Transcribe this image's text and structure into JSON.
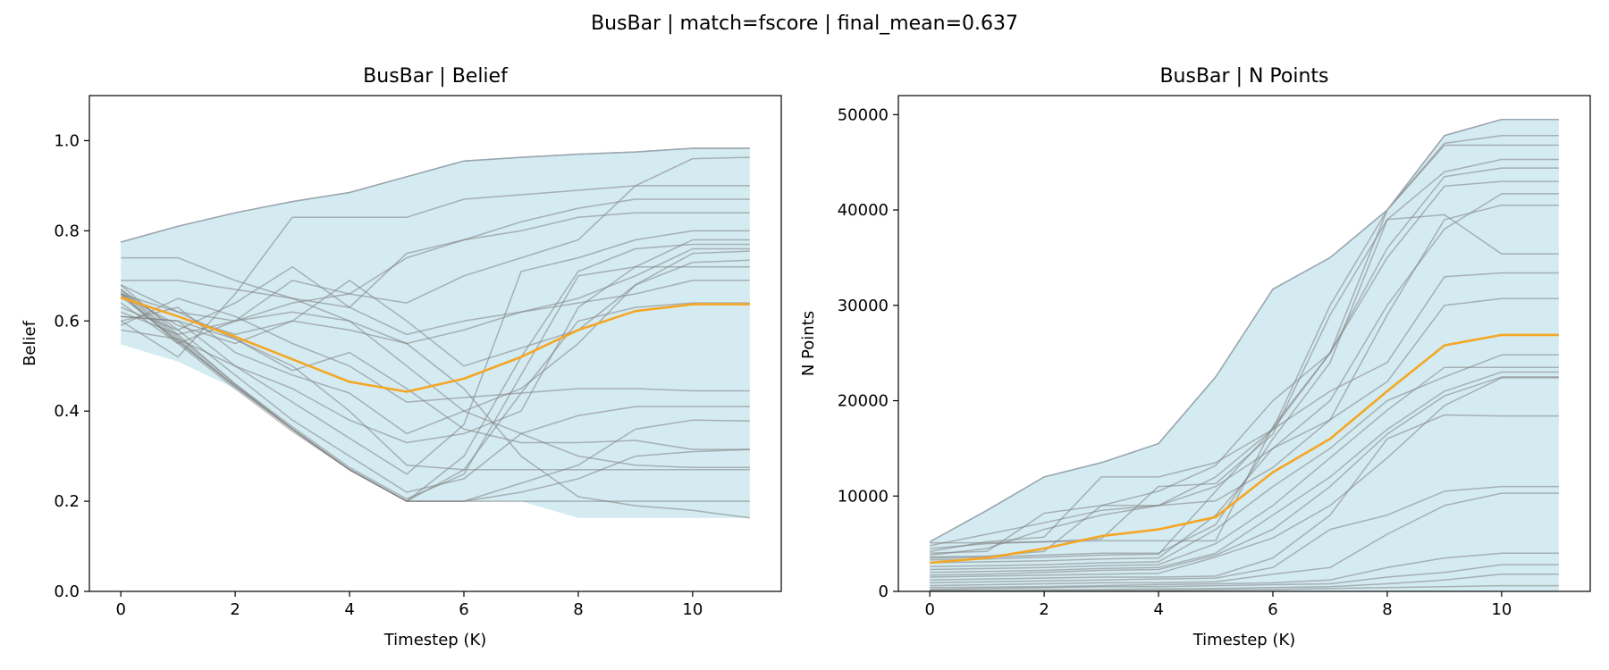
{
  "figure": {
    "suptitle": "BusBar | match=fscore | final_mean=0.637"
  },
  "colors": {
    "band": "#add8e6",
    "band_edge": "#9aa6b0",
    "run": "#808080",
    "mean": "#f5a623",
    "axis": "#000000"
  },
  "chart_data": [
    {
      "type": "line",
      "title": "BusBar | Belief",
      "xlabel": "Timestep (K)",
      "ylabel": "Belief",
      "xlim": [
        -0.55,
        11.55
      ],
      "ylim": [
        0.0,
        1.1
      ],
      "xticks": [
        0,
        2,
        4,
        6,
        8,
        10
      ],
      "yticks": [
        0.0,
        0.2,
        0.4,
        0.6,
        0.8,
        1.0
      ],
      "ytick_labels": [
        "0.0",
        "0.2",
        "0.4",
        "0.6",
        "0.8",
        "1.0"
      ],
      "x": [
        0,
        1,
        2,
        3,
        4,
        5,
        6,
        7,
        8,
        9,
        10,
        11
      ],
      "band_upper": [
        0.775,
        0.81,
        0.84,
        0.865,
        0.885,
        0.92,
        0.955,
        0.963,
        0.97,
        0.975,
        0.983,
        0.983
      ],
      "band_lower": [
        0.548,
        0.51,
        0.45,
        0.36,
        0.27,
        0.2,
        0.2,
        0.2,
        0.163,
        0.163,
        0.163,
        0.163
      ],
      "mean": [
        0.652,
        0.61,
        0.565,
        0.515,
        0.465,
        0.443,
        0.472,
        0.52,
        0.58,
        0.622,
        0.637,
        0.637
      ],
      "runs": [
        [
          0.775,
          0.81,
          0.84,
          0.865,
          0.885,
          0.92,
          0.955,
          0.963,
          0.97,
          0.975,
          0.983,
          0.983
        ],
        [
          0.74,
          0.74,
          0.69,
          0.65,
          0.6,
          0.55,
          0.45,
          0.3,
          0.21,
          0.19,
          0.18,
          0.163
        ],
        [
          0.69,
          0.69,
          0.67,
          0.65,
          0.63,
          0.75,
          0.78,
          0.8,
          0.83,
          0.84,
          0.84,
          0.84
        ],
        [
          0.68,
          0.62,
          0.6,
          0.62,
          0.6,
          0.5,
          0.4,
          0.35,
          0.3,
          0.28,
          0.275,
          0.275
        ],
        [
          0.66,
          0.59,
          0.55,
          0.6,
          0.58,
          0.55,
          0.58,
          0.62,
          0.64,
          0.66,
          0.69,
          0.69
        ],
        [
          0.65,
          0.61,
          0.57,
          0.6,
          0.69,
          0.6,
          0.5,
          0.54,
          0.58,
          0.68,
          0.75,
          0.755
        ],
        [
          0.64,
          0.55,
          0.6,
          0.69,
          0.66,
          0.64,
          0.7,
          0.74,
          0.78,
          0.9,
          0.96,
          0.963
        ],
        [
          0.63,
          0.58,
          0.64,
          0.72,
          0.63,
          0.57,
          0.6,
          0.62,
          0.65,
          0.7,
          0.76,
          0.76
        ],
        [
          0.62,
          0.57,
          0.6,
          0.64,
          0.66,
          0.74,
          0.78,
          0.82,
          0.85,
          0.87,
          0.87,
          0.87
        ],
        [
          0.61,
          0.6,
          0.56,
          0.49,
          0.53,
          0.45,
          0.36,
          0.33,
          0.33,
          0.335,
          0.315,
          0.315
        ],
        [
          0.6,
          0.52,
          0.66,
          0.83,
          0.83,
          0.83,
          0.87,
          0.88,
          0.89,
          0.9,
          0.9,
          0.9
        ],
        [
          0.59,
          0.65,
          0.61,
          0.55,
          0.5,
          0.42,
          0.43,
          0.44,
          0.45,
          0.45,
          0.445,
          0.445
        ],
        [
          0.66,
          0.62,
          0.56,
          0.5,
          0.4,
          0.28,
          0.27,
          0.27,
          0.27,
          0.27,
          0.27,
          0.27
        ],
        [
          0.58,
          0.56,
          0.5,
          0.45,
          0.38,
          0.33,
          0.35,
          0.4,
          0.63,
          0.72,
          0.78,
          0.78
        ],
        [
          0.6,
          0.63,
          0.53,
          0.48,
          0.44,
          0.35,
          0.4,
          0.45,
          0.55,
          0.68,
          0.73,
          0.735
        ],
        [
          0.61,
          0.6,
          0.5,
          0.42,
          0.34,
          0.26,
          0.37,
          0.71,
          0.74,
          0.78,
          0.8,
          0.8
        ],
        [
          0.67,
          0.58,
          0.48,
          0.38,
          0.3,
          0.22,
          0.25,
          0.35,
          0.39,
          0.41,
          0.41,
          0.41
        ],
        [
          0.68,
          0.57,
          0.46,
          0.36,
          0.27,
          0.2,
          0.2,
          0.24,
          0.28,
          0.36,
          0.38,
          0.378
        ],
        [
          0.66,
          0.55,
          0.45,
          0.355,
          0.27,
          0.2,
          0.2,
          0.22,
          0.25,
          0.3,
          0.31,
          0.315
        ],
        [
          0.665,
          0.56,
          0.455,
          0.36,
          0.27,
          0.2,
          0.2,
          0.2,
          0.2,
          0.2,
          0.2,
          0.2
        ],
        [
          0.66,
          0.555,
          0.455,
          0.36,
          0.27,
          0.2,
          0.27,
          0.44,
          0.6,
          0.63,
          0.64,
          0.64
        ],
        [
          0.67,
          0.565,
          0.46,
          0.365,
          0.275,
          0.205,
          0.26,
          0.48,
          0.7,
          0.72,
          0.72,
          0.72
        ],
        [
          0.655,
          0.555,
          0.455,
          0.36,
          0.27,
          0.2,
          0.3,
          0.52,
          0.71,
          0.76,
          0.77,
          0.77
        ]
      ]
    },
    {
      "type": "line",
      "title": "BusBar | N Points",
      "xlabel": "Timestep (K)",
      "ylabel": "N Points",
      "xlim": [
        -0.55,
        11.55
      ],
      "ylim": [
        0,
        52000
      ],
      "xticks": [
        0,
        2,
        4,
        6,
        8,
        10
      ],
      "yticks": [
        0,
        10000,
        20000,
        30000,
        40000,
        50000
      ],
      "ytick_labels": [
        "0",
        "10000",
        "20000",
        "30000",
        "40000",
        "50000"
      ],
      "x": [
        0,
        1,
        2,
        3,
        4,
        5,
        6,
        7,
        8,
        9,
        10,
        11
      ],
      "band_upper": [
        5200,
        8500,
        12000,
        13500,
        15500,
        22500,
        31700,
        35000,
        40000,
        47800,
        49500,
        49500
      ],
      "band_lower": [
        0,
        0,
        0,
        0,
        0,
        0,
        0,
        0,
        0,
        0,
        0,
        0
      ],
      "mean": [
        3000,
        3500,
        4500,
        5800,
        6500,
        7800,
        12500,
        16000,
        21000,
        25800,
        26900,
        26900
      ],
      "runs": [
        [
          5200,
          8500,
          12000,
          13500,
          15500,
          22500,
          31700,
          35000,
          40000,
          47800,
          49500,
          49500
        ],
        [
          5100,
          5100,
          5200,
          5300,
          5300,
          5300,
          17300,
          25000,
          40000,
          46800,
          46800,
          46800
        ],
        [
          4800,
          6000,
          7200,
          8500,
          9000,
          12000,
          17000,
          30000,
          40000,
          47000,
          47800,
          47800
        ],
        [
          4500,
          5000,
          5200,
          5500,
          11000,
          11300,
          16500,
          29000,
          39000,
          44000,
          45300,
          45300
        ],
        [
          4200,
          5200,
          5700,
          12000,
          12000,
          13500,
          17000,
          25000,
          36000,
          43500,
          44400,
          44400
        ],
        [
          4000,
          4200,
          8200,
          9000,
          10500,
          13200,
          20000,
          25000,
          35000,
          42500,
          43000,
          43000
        ],
        [
          3800,
          4500,
          6500,
          8000,
          9000,
          11000,
          15000,
          20000,
          30000,
          38000,
          41700,
          41700
        ],
        [
          3600,
          3700,
          4200,
          9000,
          9000,
          9500,
          13000,
          18000,
          29000,
          39000,
          40500,
          40500
        ],
        [
          3500,
          3600,
          3800,
          4000,
          4000,
          7000,
          16000,
          24000,
          39000,
          39500,
          35400,
          35400
        ],
        [
          3300,
          3400,
          3600,
          3800,
          3900,
          10500,
          17000,
          21000,
          24000,
          33000,
          33400,
          33400
        ],
        [
          3000,
          3100,
          3200,
          3400,
          3500,
          8000,
          15000,
          18000,
          22000,
          30000,
          30700,
          30700
        ],
        [
          2600,
          2700,
          2800,
          3000,
          3100,
          6500,
          11000,
          15000,
          20000,
          22500,
          24800,
          24800
        ],
        [
          2300,
          2400,
          2500,
          2700,
          2800,
          5000,
          9000,
          14000,
          19000,
          23500,
          23500,
          23500
        ],
        [
          2000,
          2100,
          2200,
          2400,
          2500,
          4000,
          8000,
          12000,
          17000,
          21000,
          23000,
          23000
        ],
        [
          1700,
          1800,
          2000,
          2200,
          2300,
          3800,
          6500,
          11000,
          16500,
          20500,
          22500,
          22500
        ],
        [
          1500,
          1600,
          1700,
          1800,
          1900,
          3600,
          5600,
          9000,
          14000,
          19500,
          22400,
          22400
        ],
        [
          1200,
          1300,
          1400,
          1500,
          1500,
          1600,
          3500,
          8000,
          16000,
          18500,
          18400,
          18400
        ],
        [
          900,
          1000,
          1100,
          1200,
          1300,
          1400,
          2500,
          6500,
          8000,
          10500,
          11000,
          11000
        ],
        [
          600,
          700,
          800,
          900,
          900,
          1000,
          1800,
          2500,
          6000,
          9000,
          10300,
          10300
        ],
        [
          400,
          450,
          500,
          600,
          700,
          800,
          900,
          1200,
          2500,
          3500,
          4000,
          4000
        ],
        [
          200,
          300,
          400,
          500,
          500,
          600,
          700,
          800,
          1500,
          2000,
          2800,
          2800
        ],
        [
          100,
          120,
          150,
          200,
          250,
          300,
          400,
          500,
          800,
          1200,
          1800,
          1800
        ],
        [
          50,
          50,
          60,
          80,
          100,
          150,
          200,
          300,
          400,
          500,
          600,
          600
        ]
      ]
    }
  ]
}
